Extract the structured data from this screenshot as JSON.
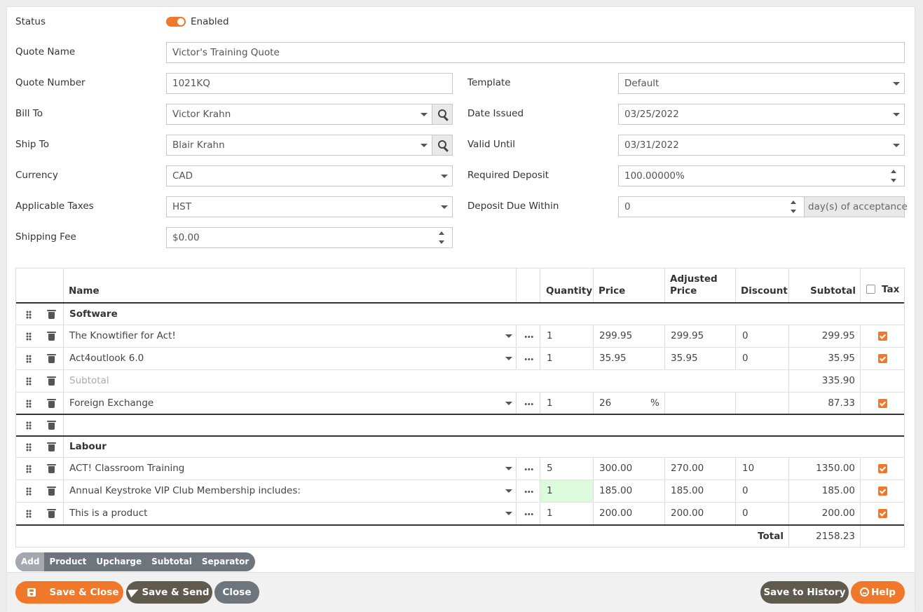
{
  "form": {
    "status_label": "Status",
    "status_value": "Enabled",
    "quote_name_label": "Quote Name",
    "quote_name_value": "Victor's Training Quote",
    "quote_number_label": "Quote Number",
    "quote_number_value": "1021KQ",
    "template_label": "Template",
    "template_value": "Default",
    "bill_to_label": "Bill To",
    "bill_to_value": "Victor Krahn",
    "date_issued_label": "Date Issued",
    "date_issued_value": "03/25/2022",
    "ship_to_label": "Ship To",
    "ship_to_value": "Blair Krahn",
    "valid_until_label": "Valid Until",
    "valid_until_value": "03/31/2022",
    "currency_label": "Currency",
    "currency_value": "CAD",
    "required_deposit_label": "Required Deposit",
    "required_deposit_value": "100.00000%",
    "taxes_label": "Applicable Taxes",
    "taxes_value": "HST",
    "deposit_due_label": "Deposit Due Within",
    "deposit_due_value": "0",
    "deposit_due_suffix": "day(s) of acceptance",
    "shipping_fee_label": "Shipping Fee",
    "shipping_fee_value": "$0.00"
  },
  "table": {
    "headers": {
      "name": "Name",
      "quantity": "Quantity",
      "price": "Price",
      "adjusted_price_1": "Adjusted",
      "adjusted_price_2": "Price",
      "discount": "Discount",
      "subtotal": "Subtotal",
      "tax": "Tax"
    },
    "rows": [
      {
        "name": "Software"
      },
      {
        "name": "The Knowtifier for Act!",
        "quantity": "1",
        "price": "299.95",
        "adjusted": "299.95",
        "discount": "0",
        "subtotal": "299.95"
      },
      {
        "name": "Act4outlook 6.0",
        "quantity": "1",
        "price": "35.95",
        "adjusted": "35.95",
        "discount": "0",
        "subtotal": "35.95"
      },
      {
        "name": "Subtotal",
        "subtotal": "335.90"
      },
      {
        "name": "Foreign Exchange",
        "quantity": "1",
        "price": "26",
        "price_unit": "%",
        "subtotal": "87.33"
      },
      {
        "name": "Labour"
      },
      {
        "name": "ACT! Classroom Training",
        "quantity": "5",
        "price": "300.00",
        "adjusted": "270.00",
        "discount": "10",
        "subtotal": "1350.00"
      },
      {
        "name": "Annual Keystroke VIP Club Membership includes:",
        "quantity": "1",
        "price": "185.00",
        "adjusted": "185.00",
        "discount": "0",
        "subtotal": "185.00"
      },
      {
        "name": "This is a product",
        "quantity": "1",
        "price": "200.00",
        "adjusted": "200.00",
        "discount": "0",
        "subtotal": "200.00"
      }
    ],
    "total_label": "Total",
    "total_value": "2158.23"
  },
  "addbar": {
    "add": "Add",
    "product": "Product",
    "upcharge": "Upcharge",
    "subtotal": "Subtotal",
    "separator": "Separator"
  },
  "footer": {
    "save_close": "Save & Close",
    "save_send": "Save & Send",
    "close": "Close",
    "save_history": "Save to History",
    "help": "Help"
  },
  "colors": {
    "accent": "#f0782a",
    "dark_button": "#5f5a4d",
    "grey_button": "#6e757c",
    "highlight": "#dcfbdc"
  }
}
